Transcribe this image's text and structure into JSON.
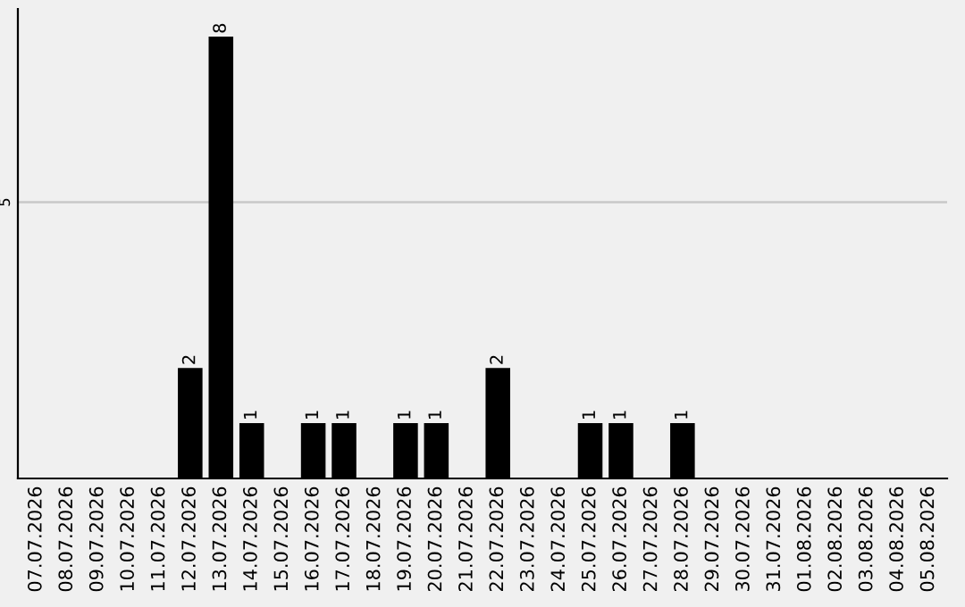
{
  "chart_data": {
    "type": "bar",
    "categories": [
      "07.07.2026",
      "08.07.2026",
      "09.07.2026",
      "10.07.2026",
      "11.07.2026",
      "12.07.2026",
      "13.07.2026",
      "14.07.2026",
      "15.07.2026",
      "16.07.2026",
      "17.07.2026",
      "18.07.2026",
      "19.07.2026",
      "20.07.2026",
      "21.07.2026",
      "22.07.2026",
      "23.07.2026",
      "24.07.2026",
      "25.07.2026",
      "26.07.2026",
      "27.07.2026",
      "28.07.2026",
      "29.07.2026",
      "30.07.2026",
      "31.07.2026",
      "01.08.2026",
      "02.08.2026",
      "03.08.2026",
      "04.08.2026",
      "05.08.2026"
    ],
    "values": [
      0,
      0,
      0,
      0,
      0,
      2,
      8,
      1,
      0,
      1,
      1,
      0,
      1,
      1,
      0,
      2,
      0,
      0,
      1,
      1,
      0,
      1,
      0,
      0,
      0,
      0,
      0,
      0,
      0,
      0
    ],
    "value_labels": [
      null,
      null,
      null,
      null,
      null,
      "2",
      "8",
      "1",
      null,
      "1",
      "1",
      null,
      "1",
      "1",
      null,
      "2",
      null,
      null,
      "1",
      "1",
      null,
      "1",
      null,
      null,
      null,
      null,
      null,
      null,
      null,
      null
    ],
    "color": "#000000",
    "ylim": [
      0,
      8.5
    ],
    "yticks": [
      5
    ],
    "grid": "y"
  }
}
